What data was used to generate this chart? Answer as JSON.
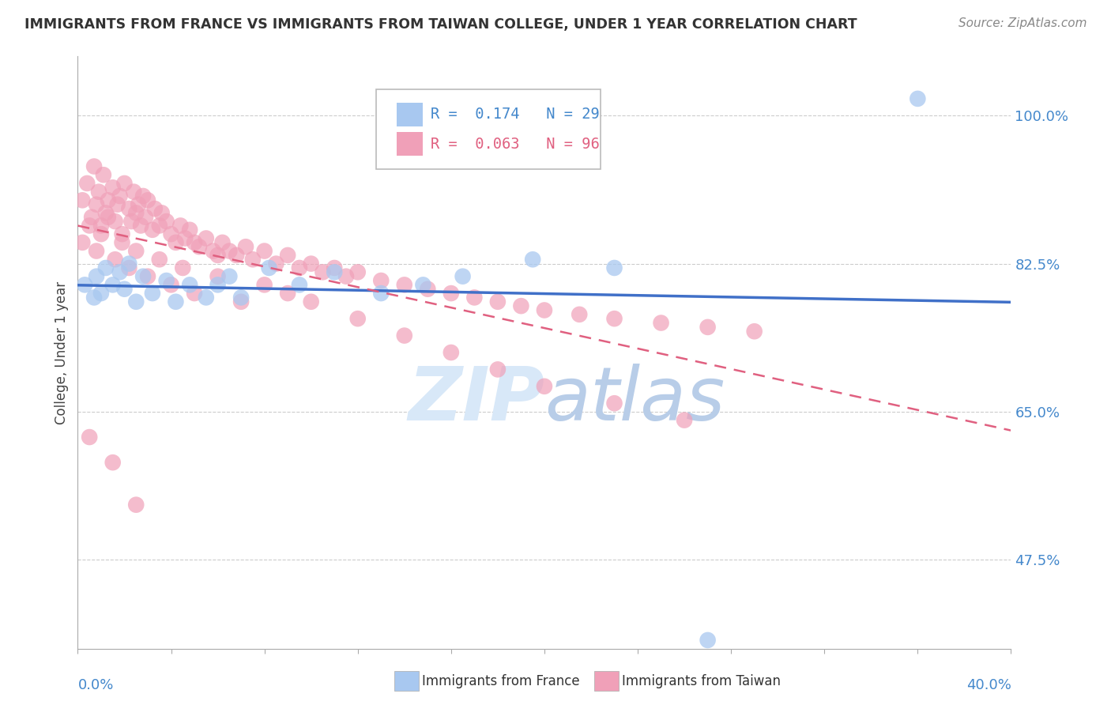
{
  "title": "IMMIGRANTS FROM FRANCE VS IMMIGRANTS FROM TAIWAN COLLEGE, UNDER 1 YEAR CORRELATION CHART",
  "source": "Source: ZipAtlas.com",
  "ylabel": "College, Under 1 year",
  "yticks": [
    "100.0%",
    "82.5%",
    "65.0%",
    "47.5%"
  ],
  "ytick_vals": [
    1.0,
    0.825,
    0.65,
    0.475
  ],
  "xmin": 0.0,
  "xmax": 0.4,
  "ymin": 0.37,
  "ymax": 1.07,
  "legend_R_france": "0.174",
  "legend_N_france": "29",
  "legend_R_taiwan": "0.063",
  "legend_N_taiwan": "96",
  "france_color": "#A8C8F0",
  "taiwan_color": "#F0A0B8",
  "france_line_color": "#4070C8",
  "taiwan_line_color": "#E06080",
  "background_color": "#FFFFFF",
  "title_color": "#333333",
  "tick_color": "#4488CC",
  "watermark_color": "#D8E8F8",
  "france_x": [
    0.003,
    0.007,
    0.008,
    0.01,
    0.012,
    0.015,
    0.018,
    0.02,
    0.022,
    0.025,
    0.028,
    0.032,
    0.038,
    0.042,
    0.048,
    0.055,
    0.06,
    0.065,
    0.07,
    0.082,
    0.095,
    0.11,
    0.13,
    0.148,
    0.165,
    0.195,
    0.23,
    0.27,
    0.36
  ],
  "france_y": [
    0.8,
    0.785,
    0.81,
    0.79,
    0.82,
    0.8,
    0.815,
    0.795,
    0.825,
    0.78,
    0.81,
    0.79,
    0.805,
    0.78,
    0.8,
    0.785,
    0.8,
    0.81,
    0.785,
    0.82,
    0.8,
    0.815,
    0.79,
    0.8,
    0.81,
    0.83,
    0.82,
    0.38,
    1.02
  ],
  "taiwan_x": [
    0.002,
    0.004,
    0.006,
    0.007,
    0.008,
    0.009,
    0.01,
    0.011,
    0.012,
    0.013,
    0.015,
    0.016,
    0.017,
    0.018,
    0.019,
    0.02,
    0.022,
    0.023,
    0.024,
    0.025,
    0.026,
    0.027,
    0.028,
    0.029,
    0.03,
    0.032,
    0.033,
    0.035,
    0.036,
    0.038,
    0.04,
    0.042,
    0.044,
    0.046,
    0.048,
    0.05,
    0.052,
    0.055,
    0.058,
    0.06,
    0.062,
    0.065,
    0.068,
    0.072,
    0.075,
    0.08,
    0.085,
    0.09,
    0.095,
    0.1,
    0.105,
    0.11,
    0.115,
    0.12,
    0.13,
    0.14,
    0.15,
    0.16,
    0.17,
    0.18,
    0.19,
    0.2,
    0.215,
    0.23,
    0.25,
    0.27,
    0.29,
    0.002,
    0.005,
    0.008,
    0.01,
    0.013,
    0.016,
    0.019,
    0.022,
    0.025,
    0.03,
    0.035,
    0.04,
    0.045,
    0.05,
    0.06,
    0.07,
    0.08,
    0.09,
    0.1,
    0.12,
    0.14,
    0.16,
    0.18,
    0.2,
    0.23,
    0.26,
    0.005,
    0.015,
    0.025
  ],
  "taiwan_y": [
    0.9,
    0.92,
    0.88,
    0.94,
    0.895,
    0.91,
    0.87,
    0.93,
    0.885,
    0.9,
    0.915,
    0.875,
    0.895,
    0.905,
    0.86,
    0.92,
    0.89,
    0.875,
    0.91,
    0.885,
    0.895,
    0.87,
    0.905,
    0.88,
    0.9,
    0.865,
    0.89,
    0.87,
    0.885,
    0.875,
    0.86,
    0.85,
    0.87,
    0.855,
    0.865,
    0.85,
    0.845,
    0.855,
    0.84,
    0.835,
    0.85,
    0.84,
    0.835,
    0.845,
    0.83,
    0.84,
    0.825,
    0.835,
    0.82,
    0.825,
    0.815,
    0.82,
    0.81,
    0.815,
    0.805,
    0.8,
    0.795,
    0.79,
    0.785,
    0.78,
    0.775,
    0.77,
    0.765,
    0.76,
    0.755,
    0.75,
    0.745,
    0.85,
    0.87,
    0.84,
    0.86,
    0.88,
    0.83,
    0.85,
    0.82,
    0.84,
    0.81,
    0.83,
    0.8,
    0.82,
    0.79,
    0.81,
    0.78,
    0.8,
    0.79,
    0.78,
    0.76,
    0.74,
    0.72,
    0.7,
    0.68,
    0.66,
    0.64,
    0.62,
    0.59,
    0.54
  ]
}
